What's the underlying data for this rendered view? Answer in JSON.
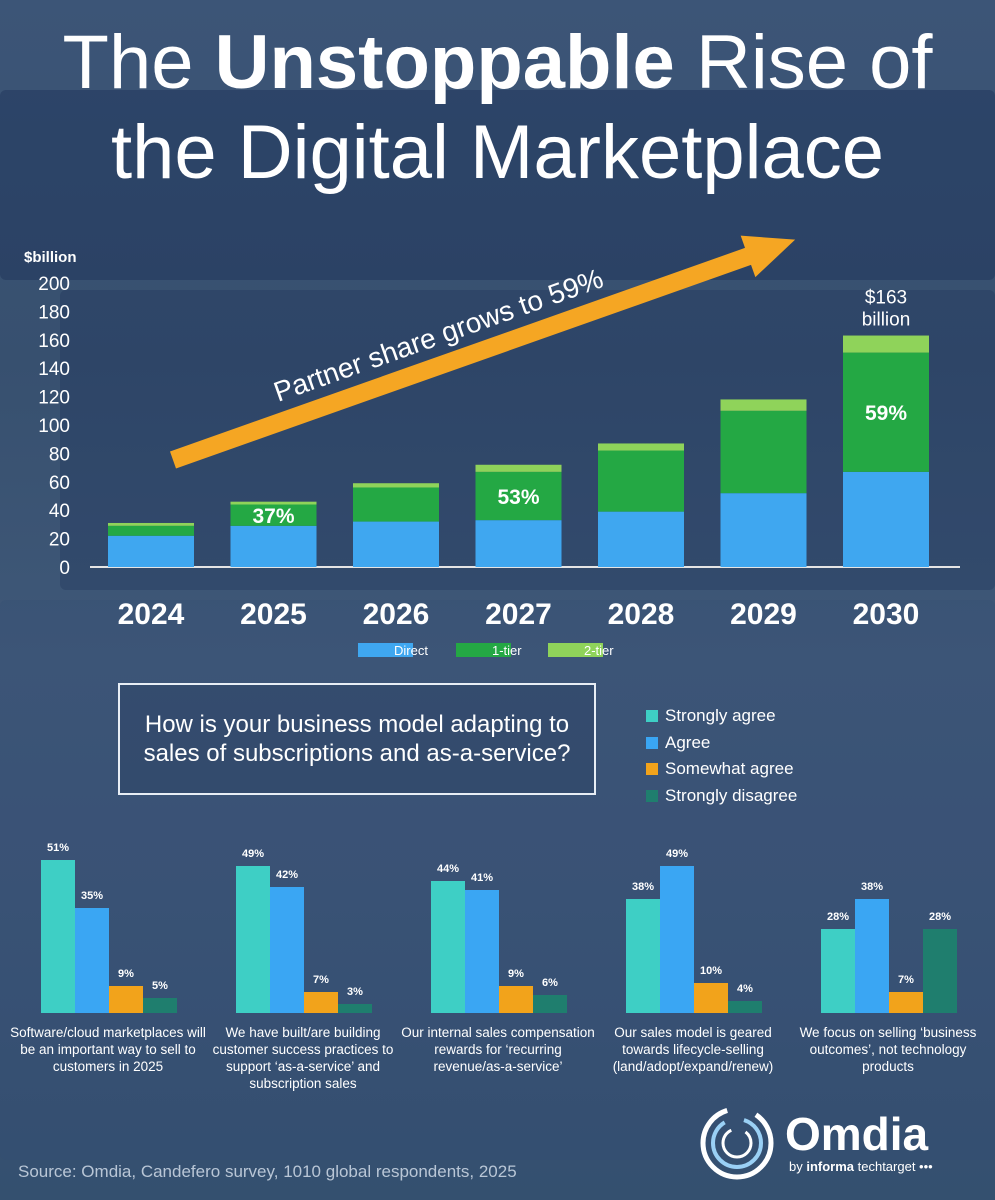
{
  "title": {
    "before": "The ",
    "bold": "Unstoppable",
    "after": " Rise of the Digital Marketplace"
  },
  "colors": {
    "direct": "#3fa7f0",
    "tier1": "#24a844",
    "tier2": "#8fd35a",
    "arrow": "#f5a623",
    "strongly_agree": "#3ecfc5",
    "agree": "#3aa6f3",
    "somewhat_agree": "#f2a31b",
    "strongly_disagree": "#1f7e6e"
  },
  "chart_data": [
    {
      "type": "bar",
      "stacked": true,
      "ylabel": "$billion",
      "ylim": [
        0,
        200
      ],
      "yticks": [
        0,
        20,
        40,
        60,
        80,
        100,
        120,
        140,
        160,
        180,
        200
      ],
      "categories": [
        "2024",
        "2025",
        "2026",
        "2027",
        "2028",
        "2029",
        "2030"
      ],
      "series": [
        {
          "name": "Direct",
          "values": [
            22,
            29,
            32,
            33,
            39,
            52,
            67
          ]
        },
        {
          "name": "1-tier",
          "values": [
            7,
            15,
            24,
            34,
            43,
            58,
            84
          ]
        },
        {
          "name": "2-tier",
          "values": [
            2,
            2,
            3,
            5,
            5,
            8,
            12
          ]
        }
      ],
      "bar_labels": [
        {
          "category": "2025",
          "text": "37%"
        },
        {
          "category": "2027",
          "text": "53%"
        },
        {
          "category": "2030",
          "text": "59%"
        }
      ],
      "annotation": "Partner share grows to 59%",
      "total_label": {
        "category": "2030",
        "line1": "$163",
        "line2": "billion"
      },
      "legend_position": "bottom"
    },
    {
      "type": "bar",
      "question": "How is your business model adapting to sales of subscriptions and as-a-service?",
      "legend": [
        "Strongly agree",
        "Agree",
        "Somewhat agree",
        "Strongly disagree"
      ],
      "legend_position": "right",
      "groups": [
        {
          "label": "Software/cloud marketplaces will be an important way to sell to customers in 2025",
          "values": [
            51,
            35,
            9,
            5
          ]
        },
        {
          "label": "We have built/are building customer success practices to support ‘as-a-service’ and subscription sales",
          "values": [
            49,
            42,
            7,
            3
          ]
        },
        {
          "label": "Our internal sales compensation rewards for ‘recurring revenue/as-a-service’",
          "values": [
            44,
            41,
            9,
            6
          ]
        },
        {
          "label": "Our sales model is geared towards lifecycle-selling (land/adopt/expand/renew)",
          "values": [
            38,
            49,
            10,
            4
          ]
        },
        {
          "label": "We focus on selling ‘business outcomes’, not technology products",
          "values": [
            28,
            38,
            7,
            28
          ]
        }
      ]
    }
  ],
  "source": "Source: Omdia, Candefero survey, 1010 global respondents, 2025",
  "logo": {
    "name": "Omdia",
    "sub_by": "by ",
    "sub_brand": "informa",
    "sub_rest": " techtarget •••"
  }
}
